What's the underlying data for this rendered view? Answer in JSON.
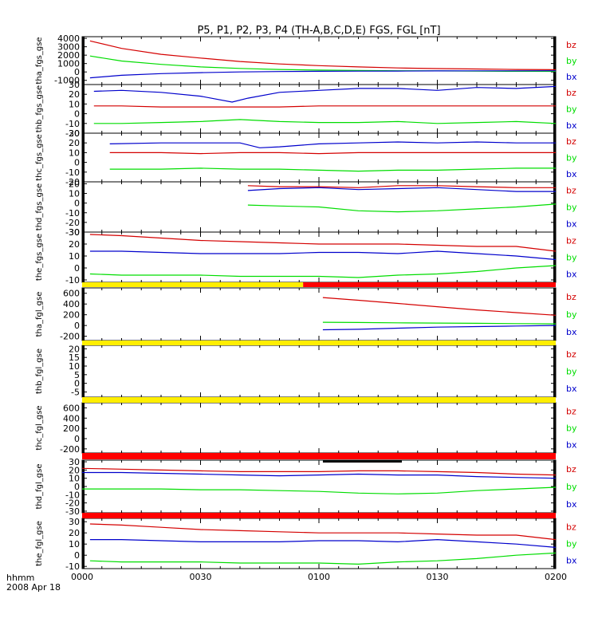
{
  "title": "P5, P1, P2, P3, P4 (TH-A,B,C,D,E) FGS, FGL [nT]",
  "x_axis": {
    "ticks": [
      "0000",
      "0030",
      "0100",
      "0130",
      "0200"
    ],
    "units_label": "hhmm",
    "date_label": "2008 Apr 18"
  },
  "colors": {
    "bz": "#d40000",
    "by": "#00dd00",
    "bx": "#0000cc",
    "bar_red": "#ff0000",
    "bar_yellow": "#ffee00",
    "bar_black": "#000000"
  },
  "chart_data": {
    "type": "line",
    "x_range_min": [
      0,
      120
    ],
    "panels": [
      {
        "label": "tha_fgs_gse",
        "ylim": [
          -1500,
          4200
        ],
        "yticks": [
          4000,
          3000,
          2000,
          1000,
          0,
          -1000
        ],
        "ytick_labels": [
          "4000",
          "3000",
          "2000",
          "1000",
          "0",
          "-1000"
        ],
        "series": [
          {
            "name": "bz",
            "x": [
              2,
              10,
              20,
              30,
              40,
              50,
              60,
              70,
              80,
              90,
              100,
              110,
              120
            ],
            "values": [
              3700,
              2800,
              2100,
              1650,
              1250,
              950,
              750,
              600,
              480,
              400,
              350,
              300,
              270
            ]
          },
          {
            "name": "by",
            "x": [
              2,
              10,
              20,
              30,
              40,
              50,
              60,
              70,
              80,
              90,
              100,
              110,
              120
            ],
            "values": [
              1900,
              1300,
              900,
              600,
              420,
              300,
              220,
              170,
              140,
              120,
              100,
              80,
              70
            ]
          },
          {
            "name": "bx",
            "x": [
              2,
              10,
              20,
              30,
              40,
              50,
              60,
              70,
              80,
              90,
              100,
              110,
              120
            ],
            "values": [
              -700,
              -400,
              -200,
              -80,
              0,
              50,
              80,
              100,
              110,
              120,
              130,
              130,
              140
            ]
          }
        ]
      },
      {
        "label": "thb_fgs_gse",
        "ylim": [
          -20,
          30
        ],
        "yticks": [
          30,
          20,
          10,
          0,
          -10,
          -20
        ],
        "ytick_labels": [
          "30",
          "20",
          "10",
          "0",
          "-10",
          "-20"
        ],
        "series": [
          {
            "name": "bz",
            "x": [
              3,
              10,
              20,
              30,
              40,
              50,
              60,
              70,
              80,
              90,
              100,
              110,
              120
            ],
            "values": [
              8,
              8,
              7,
              7,
              7,
              7,
              8,
              8,
              8,
              8,
              8,
              8,
              8
            ]
          },
          {
            "name": "by",
            "x": [
              3,
              10,
              20,
              30,
              40,
              50,
              60,
              70,
              80,
              90,
              100,
              110,
              120
            ],
            "values": [
              -10,
              -10,
              -9,
              -8,
              -6,
              -8,
              -9,
              -9,
              -8,
              -10,
              -9,
              -8,
              -10
            ]
          },
          {
            "name": "bx",
            "x": [
              3,
              10,
              20,
              30,
              38,
              42,
              50,
              60,
              70,
              80,
              90,
              100,
              110,
              120
            ],
            "values": [
              23,
              24,
              22,
              18,
              12,
              16,
              22,
              24,
              26,
              26,
              24,
              27,
              26,
              28
            ]
          }
        ]
      },
      {
        "label": "thc_fgs_gse",
        "ylim": [
          -20,
          30
        ],
        "yticks": [
          30,
          20,
          10,
          0,
          -10,
          -20
        ],
        "ytick_labels": [
          "30",
          "20",
          "10",
          "0",
          "-10",
          "-20"
        ],
        "series": [
          {
            "name": "bz",
            "x": [
              7,
              20,
              30,
              40,
              50,
              60,
              70,
              80,
              90,
              100,
              110,
              120
            ],
            "values": [
              10,
              10,
              9,
              10,
              10,
              9,
              10,
              10,
              10,
              10,
              10,
              10
            ]
          },
          {
            "name": "by",
            "x": [
              7,
              20,
              30,
              40,
              50,
              60,
              70,
              80,
              90,
              100,
              110,
              120
            ],
            "values": [
              -7,
              -7,
              -6,
              -7,
              -7,
              -8,
              -9,
              -8,
              -8,
              -7,
              -6,
              -6
            ]
          },
          {
            "name": "bx",
            "x": [
              7,
              20,
              30,
              40,
              45,
              50,
              60,
              70,
              80,
              90,
              100,
              110,
              120
            ],
            "values": [
              19,
              20,
              20,
              20,
              15,
              16,
              19,
              20,
              21,
              20,
              21,
              20,
              20
            ]
          }
        ]
      },
      {
        "label": "thd_fgs_gse",
        "ylim": [
          -30,
          22
        ],
        "yticks": [
          20,
          10,
          0,
          -10,
          -20,
          -30
        ],
        "ytick_labels": [
          "20",
          "10",
          "0",
          "-10",
          "-20",
          "-30"
        ],
        "series": [
          {
            "name": "bz",
            "x": [
              42,
              50,
              60,
              70,
              80,
              90,
              100,
              110,
              120
            ],
            "values": [
              18,
              17,
              17,
              16,
              18,
              18,
              17,
              16,
              16
            ]
          },
          {
            "name": "by",
            "x": [
              42,
              50,
              60,
              70,
              80,
              90,
              100,
              110,
              120
            ],
            "values": [
              -2,
              -3,
              -4,
              -8,
              -9,
              -8,
              -6,
              -4,
              -1
            ]
          },
          {
            "name": "bx",
            "x": [
              42,
              50,
              60,
              70,
              80,
              90,
              100,
              110,
              120
            ],
            "values": [
              13,
              15,
              16,
              14,
              15,
              16,
              14,
              12,
              12
            ]
          }
        ]
      },
      {
        "label": "the_fgs_gse",
        "ylim": [
          -12,
          30
        ],
        "yticks": [
          30,
          20,
          10,
          0,
          -10
        ],
        "ytick_labels": [
          "30",
          "20",
          "10",
          "0",
          "-10"
        ],
        "series": [
          {
            "name": "bz",
            "x": [
              2,
              10,
              20,
              30,
              40,
              50,
              60,
              70,
              80,
              90,
              100,
              110,
              120
            ],
            "values": [
              28,
              27,
              25,
              23,
              22,
              21,
              20,
              20,
              20,
              19,
              18,
              18,
              14
            ]
          },
          {
            "name": "by",
            "x": [
              2,
              10,
              20,
              30,
              40,
              50,
              60,
              70,
              80,
              90,
              100,
              110,
              120
            ],
            "values": [
              -5,
              -6,
              -6,
              -6,
              -7,
              -7,
              -7,
              -8,
              -6,
              -5,
              -3,
              0,
              2
            ]
          },
          {
            "name": "bx",
            "x": [
              2,
              10,
              20,
              30,
              40,
              50,
              60,
              70,
              80,
              90,
              100,
              110,
              120
            ],
            "values": [
              14,
              14,
              13,
              12,
              12,
              12,
              13,
              13,
              12,
              14,
              12,
              10,
              7
            ]
          }
        ]
      },
      {
        "label": "tha_fgl_gse",
        "ylim": [
          -280,
          700
        ],
        "yticks": [
          600,
          400,
          200,
          0,
          -200
        ],
        "ytick_labels": [
          "600",
          "400",
          "200",
          "0",
          "-200"
        ],
        "series": [
          {
            "name": "bz",
            "x": [
              61,
              70,
              80,
              90,
              100,
              110,
              120
            ],
            "values": [
              520,
              470,
              410,
              350,
              290,
              240,
              190
            ]
          },
          {
            "name": "by",
            "x": [
              61,
              70,
              80,
              90,
              100,
              110,
              120
            ],
            "values": [
              60,
              55,
              50,
              45,
              40,
              35,
              30
            ]
          },
          {
            "name": "bx",
            "x": [
              61,
              70,
              80,
              90,
              100,
              110,
              120
            ],
            "values": [
              -80,
              -70,
              -50,
              -30,
              -20,
              -10,
              0
            ]
          }
        ]
      },
      {
        "label": "thb_fgl_gse",
        "ylim": [
          -8,
          22
        ],
        "yticks": [
          20,
          15,
          10,
          5,
          0,
          -5
        ],
        "ytick_labels": [
          "20",
          "15",
          "10",
          "5",
          "0",
          "-5"
        ],
        "series": []
      },
      {
        "label": "thc_fgl_gse",
        "ylim": [
          -280,
          700
        ],
        "yticks": [
          600,
          400,
          200,
          0,
          -200
        ],
        "ytick_labels": [
          "600",
          "400",
          "200",
          "0",
          "-200"
        ],
        "series": []
      },
      {
        "label": "thd_fgl_gse",
        "ylim": [
          -32,
          32
        ],
        "yticks": [
          30,
          20,
          10,
          0,
          -10,
          -20,
          -30
        ],
        "ytick_labels": [
          "30",
          "20",
          "10",
          "0",
          "-10",
          "-20",
          "-30"
        ],
        "series": [
          {
            "name": "bz",
            "x": [
              0,
              10,
              20,
              30,
              40,
              50,
              60,
              70,
              80,
              90,
              100,
              110,
              120
            ],
            "values": [
              22,
              21,
              20,
              19,
              18,
              18,
              18,
              19,
              19,
              18,
              17,
              15,
              14
            ]
          },
          {
            "name": "by",
            "x": [
              0,
              10,
              20,
              30,
              40,
              50,
              60,
              70,
              80,
              90,
              100,
              110,
              120
            ],
            "values": [
              -3,
              -3,
              -3,
              -4,
              -4,
              -5,
              -6,
              -8,
              -9,
              -8,
              -5,
              -3,
              -1
            ]
          },
          {
            "name": "bx",
            "x": [
              0,
              10,
              20,
              30,
              40,
              50,
              60,
              70,
              80,
              90,
              100,
              110,
              120
            ],
            "values": [
              17,
              17,
              16,
              15,
              14,
              13,
              14,
              15,
              14,
              14,
              12,
              11,
              10
            ]
          }
        ]
      },
      {
        "label": "the_fgl_gse",
        "ylim": [
          -12,
          33
        ],
        "yticks": [
          30,
          20,
          10,
          0,
          -10
        ],
        "ytick_labels": [
          "30",
          "20",
          "10",
          "0",
          "-10"
        ],
        "series": [
          {
            "name": "bz",
            "x": [
              2,
              10,
              20,
              30,
              40,
              50,
              60,
              70,
              80,
              90,
              100,
              110,
              120
            ],
            "values": [
              28,
              27,
              25,
              23,
              22,
              21,
              20,
              20,
              20,
              19,
              18,
              18,
              14
            ]
          },
          {
            "name": "by",
            "x": [
              2,
              10,
              20,
              30,
              40,
              50,
              60,
              70,
              80,
              90,
              100,
              110,
              120
            ],
            "values": [
              -5,
              -6,
              -6,
              -6,
              -7,
              -7,
              -7,
              -8,
              -6,
              -5,
              -3,
              0,
              2
            ]
          },
          {
            "name": "bx",
            "x": [
              2,
              10,
              20,
              30,
              40,
              50,
              60,
              70,
              80,
              90,
              100,
              110,
              120
            ],
            "values": [
              14,
              14,
              13,
              12,
              12,
              12,
              13,
              13,
              12,
              14,
              12,
              10,
              7
            ]
          }
        ]
      }
    ],
    "legend_labels": [
      "bz",
      "by",
      "bx"
    ],
    "mode_bars": [
      {
        "after_panel": 4,
        "segments": [
          {
            "from": 0,
            "to": 56,
            "color": "yellow"
          },
          {
            "from": 56,
            "to": 120,
            "color": "red"
          }
        ]
      },
      {
        "after_panel": 5,
        "segments": [
          {
            "from": 0,
            "to": 120,
            "color": "yellow"
          }
        ]
      },
      {
        "after_panel": 6,
        "segments": [
          {
            "from": 0,
            "to": 120,
            "color": "yellow"
          }
        ]
      },
      {
        "after_panel": 7,
        "segments": [
          {
            "from": 0,
            "to": 120,
            "color": "red"
          }
        ],
        "extra_black": [
          {
            "from": 61,
            "to": 81
          }
        ]
      },
      {
        "after_panel": 8,
        "segments": [
          {
            "from": 0,
            "to": 120,
            "color": "red"
          }
        ]
      }
    ]
  }
}
